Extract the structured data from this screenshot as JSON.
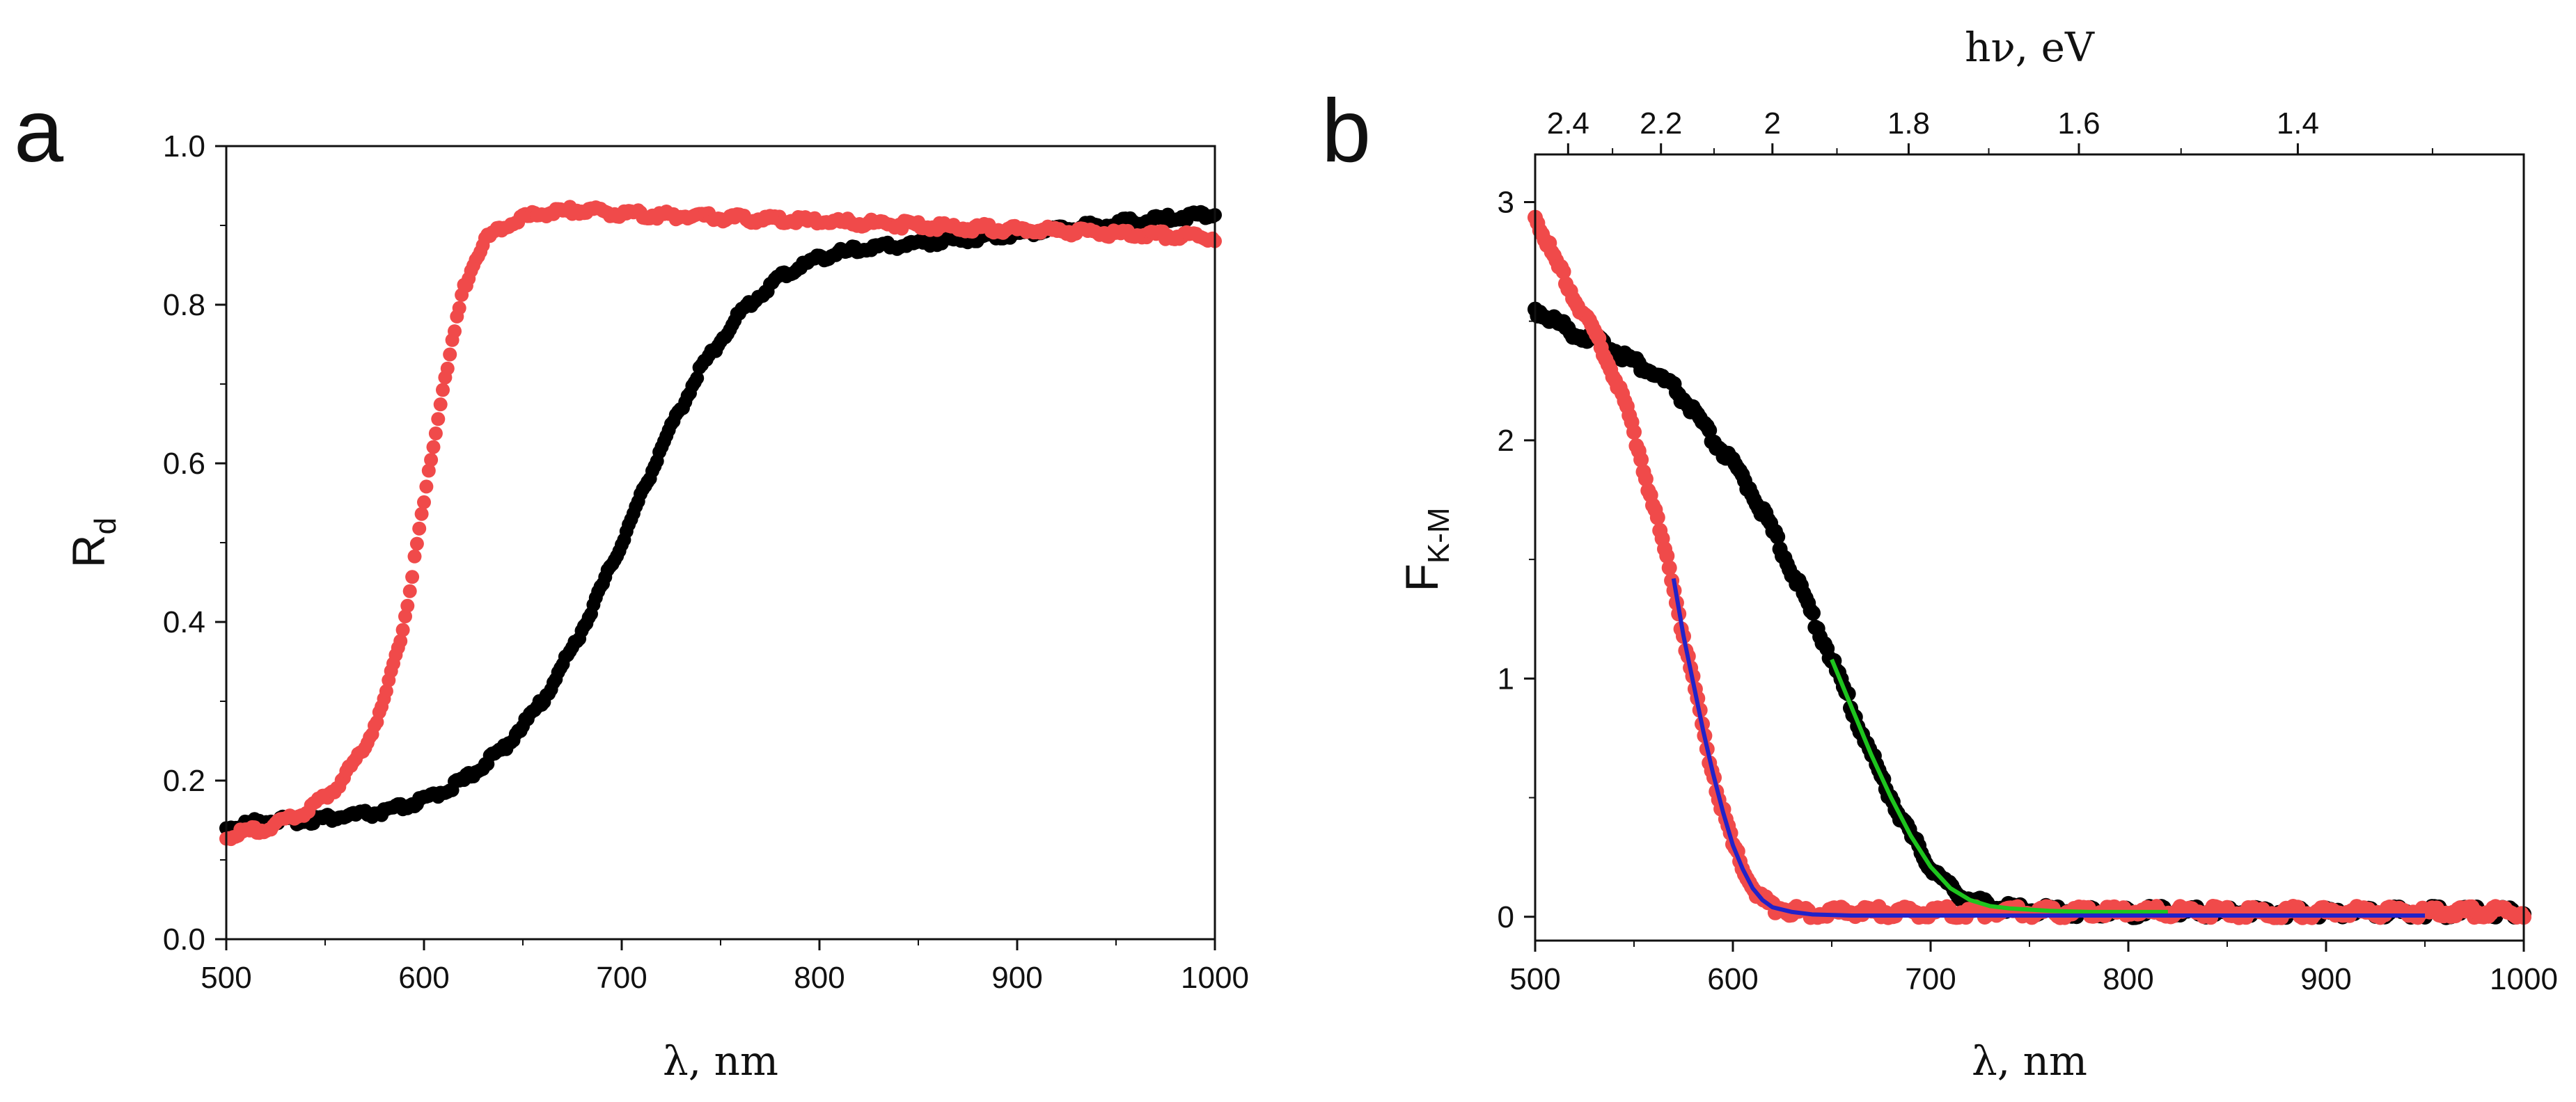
{
  "chart_data": [
    {
      "panel": "a",
      "type": "scatter",
      "xlabel": "λ, nm",
      "ylabel_main": "R",
      "ylabel_sub": "d",
      "xlim": [
        500,
        1000
      ],
      "ylim": [
        0.0,
        1.0
      ],
      "x_ticks": [
        500,
        600,
        700,
        800,
        900,
        1000
      ],
      "y_ticks": [
        "0.0",
        "0.2",
        "0.4",
        "0.6",
        "0.8",
        "1.0"
      ],
      "series": [
        {
          "name": "black",
          "color": "#000000",
          "x": [
            500,
            520,
            540,
            560,
            580,
            600,
            620,
            640,
            660,
            680,
            700,
            720,
            740,
            760,
            780,
            800,
            820,
            840,
            860,
            880,
            900,
            920,
            940,
            960,
            980,
            1000
          ],
          "y": [
            0.14,
            0.15,
            0.15,
            0.155,
            0.16,
            0.175,
            0.2,
            0.24,
            0.3,
            0.39,
            0.5,
            0.62,
            0.72,
            0.79,
            0.835,
            0.86,
            0.87,
            0.875,
            0.88,
            0.885,
            0.89,
            0.895,
            0.9,
            0.905,
            0.91,
            0.915
          ]
        },
        {
          "name": "red",
          "color": "#f04a4a",
          "x": [
            500,
            520,
            540,
            555,
            570,
            580,
            590,
            600,
            610,
            620,
            630,
            640,
            650,
            660,
            680,
            700,
            750,
            800,
            850,
            900,
            950,
            1000
          ],
          "y": [
            0.13,
            0.14,
            0.16,
            0.19,
            0.24,
            0.3,
            0.4,
            0.55,
            0.7,
            0.82,
            0.88,
            0.9,
            0.91,
            0.915,
            0.92,
            0.915,
            0.91,
            0.905,
            0.9,
            0.895,
            0.89,
            0.885
          ]
        }
      ]
    },
    {
      "panel": "b",
      "type": "scatter",
      "xlabel": "λ, nm",
      "ylabel_main": "F",
      "ylabel_sub": "K-M",
      "top_xlabel": "hν, eV",
      "xlim": [
        500,
        1000
      ],
      "ylim": [
        -0.1,
        3.2
      ],
      "x_ticks": [
        500,
        600,
        700,
        800,
        900,
        1000
      ],
      "y_ticks": [
        0,
        1,
        2,
        3
      ],
      "top_ticks": [
        "2.4",
        "2.2",
        "2",
        "1.8",
        "1.6",
        "1.4"
      ],
      "series": [
        {
          "name": "black",
          "color": "#000000",
          "x": [
            500,
            510,
            520,
            530,
            540,
            550,
            560,
            570,
            580,
            590,
            600,
            610,
            620,
            630,
            640,
            650,
            660,
            670,
            680,
            690,
            700,
            710,
            720,
            730,
            740,
            750,
            760,
            780,
            800,
            850,
            900,
            950,
            1000
          ],
          "y": [
            2.55,
            2.5,
            2.45,
            2.42,
            2.38,
            2.33,
            2.28,
            2.22,
            2.12,
            2.0,
            1.9,
            1.78,
            1.62,
            1.45,
            1.27,
            1.08,
            0.88,
            0.68,
            0.5,
            0.34,
            0.21,
            0.12,
            0.07,
            0.045,
            0.035,
            0.03,
            0.025,
            0.02,
            0.02,
            0.02,
            0.02,
            0.02,
            0.02
          ]
        },
        {
          "name": "red",
          "color": "#f04a4a",
          "x": [
            500,
            505,
            510,
            515,
            520,
            525,
            530,
            535,
            540,
            545,
            550,
            555,
            560,
            565,
            570,
            575,
            580,
            585,
            590,
            595,
            600,
            605,
            610,
            615,
            620,
            630,
            640,
            650,
            700,
            800,
            900,
            1000
          ],
          "y": [
            2.95,
            2.85,
            2.75,
            2.68,
            2.6,
            2.52,
            2.45,
            2.36,
            2.27,
            2.16,
            2.03,
            1.88,
            1.72,
            1.55,
            1.38,
            1.18,
            0.98,
            0.78,
            0.6,
            0.44,
            0.3,
            0.2,
            0.12,
            0.07,
            0.04,
            0.025,
            0.02,
            0.02,
            0.02,
            0.02,
            0.02,
            0.02
          ]
        },
        {
          "name": "green-fit",
          "color": "#1ec41e",
          "x": [
            650,
            660,
            670,
            680,
            690,
            700,
            710,
            720,
            730,
            740,
            750,
            760,
            780,
            800,
            820
          ],
          "y": [
            1.08,
            0.88,
            0.68,
            0.5,
            0.34,
            0.21,
            0.12,
            0.07,
            0.045,
            0.035,
            0.03,
            0.025,
            0.02,
            0.02,
            0.02
          ]
        },
        {
          "name": "blue-fit",
          "color": "#2222c8",
          "x": [
            570,
            575,
            580,
            585,
            590,
            595,
            600,
            605,
            610,
            615,
            620,
            630,
            640,
            660,
            700,
            800,
            900,
            950
          ],
          "y": [
            1.42,
            1.18,
            0.98,
            0.78,
            0.6,
            0.44,
            0.3,
            0.2,
            0.12,
            0.07,
            0.04,
            0.02,
            0.01,
            0.005,
            0.005,
            0.005,
            0.005,
            0.005
          ]
        }
      ]
    }
  ]
}
